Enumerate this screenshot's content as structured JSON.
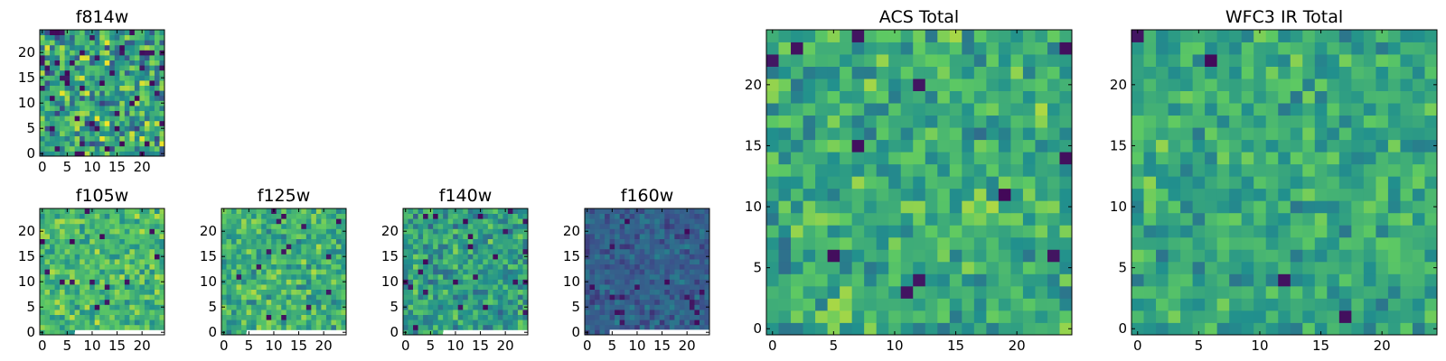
{
  "colormap": [
    "#440154",
    "#3b528b",
    "#21908d",
    "#5dc963",
    "#fde725"
  ],
  "background": "#ffffff",
  "chart_data": [
    {
      "type": "heatmap",
      "title": "f814w",
      "xlim": [
        -0.5,
        24.5
      ],
      "ylim": [
        -0.5,
        24.5
      ],
      "xticks": [
        0,
        5,
        10,
        15,
        20
      ],
      "yticks": [
        0,
        5,
        10,
        15,
        20
      ],
      "xtick_labels": [
        "0",
        "5",
        "10",
        "15",
        "20"
      ],
      "ytick_labels": [
        "0",
        "5",
        "10",
        "15",
        "20"
      ],
      "grid_size": [
        25,
        25
      ],
      "seed": 11,
      "mean": 0.58,
      "spread": 0.26,
      "dark_fraction": 0.07,
      "masked_bottom_rows": 0,
      "masked_bottom_right_cols": 0
    },
    {
      "type": "heatmap",
      "title": "f105w",
      "xlim": [
        -0.5,
        24.5
      ],
      "ylim": [
        -0.5,
        24.5
      ],
      "xticks": [
        0,
        5,
        10,
        15,
        20
      ],
      "yticks": [
        0,
        5,
        10,
        15,
        20
      ],
      "xtick_labels": [
        "0",
        "5",
        "10",
        "15",
        "20"
      ],
      "ytick_labels": [
        "0",
        "5",
        "10",
        "15",
        "20"
      ],
      "grid_size": [
        25,
        25
      ],
      "seed": 23,
      "mean": 0.68,
      "spread": 0.16,
      "dark_fraction": 0.02,
      "masked_bottom_rows": 1,
      "masked_bottom_right_cols": 18
    },
    {
      "type": "heatmap",
      "title": "f125w",
      "xlim": [
        -0.5,
        24.5
      ],
      "ylim": [
        -0.5,
        24.5
      ],
      "xticks": [
        0,
        5,
        10,
        15,
        20
      ],
      "yticks": [
        0,
        5,
        10,
        15,
        20
      ],
      "xtick_labels": [
        "0",
        "5",
        "10",
        "15",
        "20"
      ],
      "ytick_labels": [
        "0",
        "5",
        "10",
        "15",
        "20"
      ],
      "grid_size": [
        25,
        25
      ],
      "seed": 37,
      "mean": 0.64,
      "spread": 0.17,
      "dark_fraction": 0.03,
      "masked_bottom_rows": 1,
      "masked_bottom_right_cols": 20
    },
    {
      "type": "heatmap",
      "title": "f140w",
      "xlim": [
        -0.5,
        24.5
      ],
      "ylim": [
        -0.5,
        24.5
      ],
      "xticks": [
        0,
        5,
        10,
        15,
        20
      ],
      "yticks": [
        0,
        5,
        10,
        15,
        20
      ],
      "xtick_labels": [
        "0",
        "5",
        "10",
        "15",
        "20"
      ],
      "ytick_labels": [
        "0",
        "5",
        "10",
        "15",
        "20"
      ],
      "grid_size": [
        25,
        25
      ],
      "seed": 41,
      "mean": 0.56,
      "spread": 0.17,
      "dark_fraction": 0.04,
      "masked_bottom_rows": 1,
      "masked_bottom_right_cols": 17
    },
    {
      "type": "heatmap",
      "title": "f160w",
      "xlim": [
        -0.5,
        24.5
      ],
      "ylim": [
        -0.5,
        24.5
      ],
      "xticks": [
        0,
        5,
        10,
        15,
        20
      ],
      "yticks": [
        0,
        5,
        10,
        15,
        20
      ],
      "xtick_labels": [
        "0",
        "5",
        "10",
        "15",
        "20"
      ],
      "ytick_labels": [
        "0",
        "5",
        "10",
        "15",
        "20"
      ],
      "grid_size": [
        25,
        25
      ],
      "seed": 53,
      "mean": 0.3,
      "spread": 0.1,
      "dark_fraction": 0.03,
      "masked_bottom_rows": 2,
      "masked_bottom_right_cols": 20
    },
    {
      "type": "heatmap",
      "title": "ACS Total",
      "xlim": [
        -0.5,
        24.5
      ],
      "ylim": [
        -0.5,
        24.5
      ],
      "xticks": [
        0,
        5,
        10,
        15,
        20
      ],
      "yticks": [
        0,
        5,
        10,
        15,
        20
      ],
      "xtick_labels": [
        "0",
        "5",
        "10",
        "15",
        "20"
      ],
      "ytick_labels": [
        "0",
        "5",
        "10",
        "15",
        "20"
      ],
      "grid_size": [
        25,
        25
      ],
      "seed": 67,
      "mean": 0.62,
      "spread": 0.17,
      "dark_fraction": 0.015,
      "masked_bottom_rows": 0,
      "masked_bottom_right_cols": 0
    },
    {
      "type": "heatmap",
      "title": "WFC3 IR Total",
      "xlim": [
        -0.5,
        24.5
      ],
      "ylim": [
        -0.5,
        24.5
      ],
      "xticks": [
        0,
        5,
        10,
        15,
        20
      ],
      "yticks": [
        0,
        5,
        10,
        15,
        20
      ],
      "xtick_labels": [
        "0",
        "5",
        "10",
        "15",
        "20"
      ],
      "ytick_labels": [
        "0",
        "5",
        "10",
        "15",
        "20"
      ],
      "grid_size": [
        25,
        25
      ],
      "seed": 79,
      "mean": 0.6,
      "spread": 0.15,
      "dark_fraction": 0.015,
      "masked_bottom_rows": 0,
      "masked_bottom_right_cols": 0
    }
  ]
}
